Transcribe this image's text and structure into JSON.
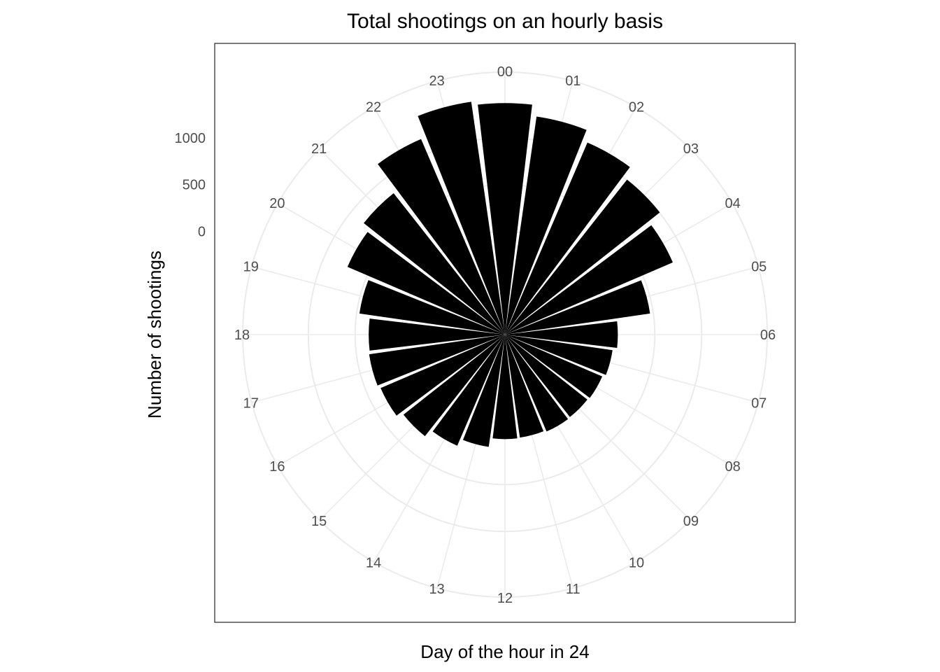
{
  "chart_data": {
    "type": "bar",
    "coordinate_system": "polar",
    "title": "Total shootings on an hourly basis",
    "xlabel": "Day of the hour in 24",
    "ylabel": "Number of shootings",
    "categories": [
      "00",
      "01",
      "02",
      "03",
      "04",
      "05",
      "06",
      "07",
      "08",
      "09",
      "10",
      "11",
      "12",
      "13",
      "14",
      "15",
      "16",
      "17",
      "18",
      "19",
      "20",
      "21",
      "22",
      "23"
    ],
    "values": [
      1370,
      1250,
      1130,
      1005,
      850,
      465,
      105,
      60,
      30,
      20,
      25,
      10,
      15,
      110,
      190,
      280,
      345,
      365,
      355,
      470,
      730,
      820,
      1170,
      1410
    ],
    "yticks": [
      0,
      500,
      1000
    ],
    "ylim": [
      -1100,
      1700
    ],
    "grid": true,
    "bar_color": "#000000"
  }
}
